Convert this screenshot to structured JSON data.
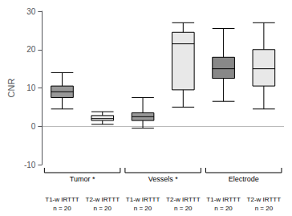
{
  "chart_data": {
    "type": "boxplot",
    "ylabel": "CNR",
    "categories": [
      "T1-w IRTTT\nn = 20",
      "T2-w IRTTT\nn = 20",
      "T1-w IRTTT\nn = 20",
      "T2-w IRTTT\nn = 20",
      "T1-w IRTTT\nn = 20",
      "T2-w IRTTT\nn = 20"
    ],
    "groups": [
      {
        "label": "Tumor *",
        "size": 2
      },
      {
        "label": "Vessels *",
        "size": 2
      },
      {
        "label": "Electrode",
        "size": 2
      }
    ],
    "values": [
      [
        4.5,
        7.5,
        9.0,
        10.5,
        14.0
      ],
      [
        0.5,
        1.5,
        2.0,
        2.8,
        3.8
      ],
      [
        -0.5,
        1.5,
        2.5,
        3.5,
        7.5
      ],
      [
        5.0,
        9.5,
        21.5,
        24.5,
        27.0
      ],
      [
        6.5,
        12.5,
        15.0,
        18.0,
        25.5
      ],
      [
        4.5,
        10.5,
        15.0,
        20.0,
        27.0
      ]
    ],
    "colors": [
      "#999999",
      "#e8e8e8",
      "#999999",
      "#e8e8e8",
      "#888888",
      "#e8e8e8"
    ],
    "hlines": [
      {
        "y": 0,
        "color": "#bbbbbb"
      }
    ],
    "ylim": [
      -10,
      30
    ],
    "yticks": [
      -10,
      0,
      10,
      20,
      30
    ],
    "grid": false
  }
}
